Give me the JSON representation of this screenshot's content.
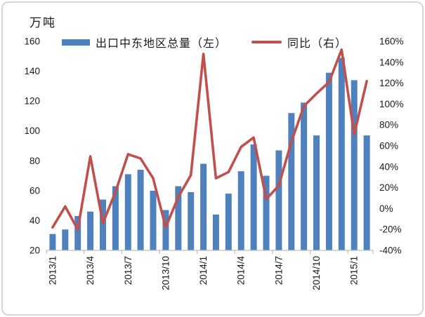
{
  "chart_data": {
    "type": "combo",
    "title": "",
    "categories": [
      "2013/1",
      "2013/2",
      "2013/3",
      "2013/4",
      "2013/5",
      "2013/6",
      "2013/7",
      "2013/8",
      "2013/9",
      "2013/10",
      "2013/11",
      "2013/12",
      "2014/1",
      "2014/2",
      "2014/3",
      "2014/4",
      "2014/5",
      "2014/6",
      "2014/7",
      "2014/8",
      "2014/9",
      "2014/10",
      "2014/11",
      "2014/12",
      "2015/1",
      "2015/2"
    ],
    "series": [
      {
        "name": "出口中东地区总量（左）",
        "type": "bar",
        "axis": "left",
        "color": "#4F81BD",
        "values": [
          31,
          34,
          43,
          46,
          54,
          63,
          71,
          74,
          60,
          47,
          63,
          59,
          78,
          44,
          58,
          73,
          91,
          70,
          87,
          112,
          119,
          97,
          139,
          149,
          134,
          97
        ]
      },
      {
        "name": "同比（右）",
        "type": "line",
        "axis": "right",
        "color": "#C0504D",
        "values": [
          -18,
          2,
          -20,
          50,
          -14,
          16,
          52,
          48,
          29,
          -18,
          11,
          32,
          148,
          29,
          35,
          59,
          68,
          9,
          22,
          64,
          98,
          110,
          121,
          152,
          71,
          122
        ]
      }
    ],
    "left_axis": {
      "title": "万吨",
      "min": 20,
      "max": 160,
      "step": 20,
      "tick_labels": [
        "20",
        "40",
        "60",
        "80",
        "100",
        "120",
        "140",
        "160"
      ]
    },
    "right_axis": {
      "min": -40,
      "max": 160,
      "step": 20,
      "tick_labels": [
        "-40%",
        "-20%",
        "0%",
        "20%",
        "40%",
        "60%",
        "80%",
        "100%",
        "120%",
        "140%",
        "160%"
      ]
    },
    "x_axis": {
      "label_every": 3,
      "shown_labels": [
        "2013/1",
        "2013/4",
        "2013/7",
        "2013/10",
        "2014/1",
        "2014/4",
        "2014/7",
        "2014/10",
        "2015/1"
      ]
    },
    "grid": "off",
    "legend_position": "top",
    "axis_line_color": "#BFBFBF"
  }
}
